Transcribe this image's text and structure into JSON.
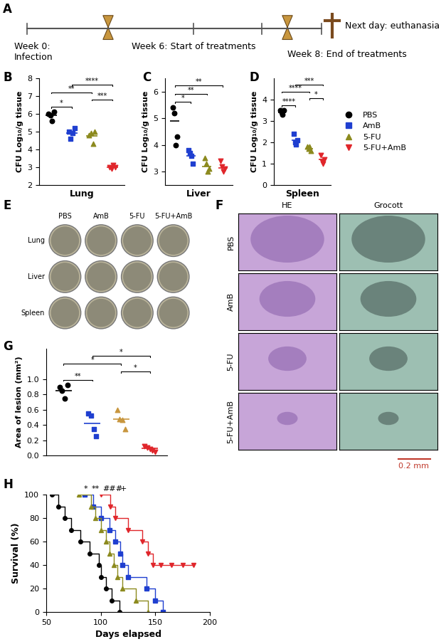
{
  "panel_labels": [
    "A",
    "B",
    "C",
    "D",
    "E",
    "F",
    "G",
    "H"
  ],
  "timeline": {
    "events": [
      "Week 0:\nInfection",
      "Week 6: Start of treatments",
      "Next day: euthanasia",
      "Week 8: End of treatments"
    ]
  },
  "chart_data": [
    {
      "type": "scatter",
      "xlabel": "Lung",
      "ylabel": "CFU Log₁₀/g tissue",
      "ylim": [
        2,
        8
      ],
      "yticks": [
        2,
        3,
        4,
        5,
        6,
        7,
        8
      ],
      "tick_labels": "y",
      "series": [
        {
          "name": "PBS",
          "color": "#000000",
          "marker": "circle",
          "values": [
            6.0,
            5.9,
            5.6,
            6.1
          ],
          "mean": 5.9
        },
        {
          "name": "AmB",
          "color": "#1f3fd0",
          "marker": "square",
          "values": [
            5.0,
            4.6,
            4.9,
            5.2
          ],
          "mean": 4.9
        },
        {
          "name": "5-FU",
          "color": "#8c8a1e",
          "marker": "triangle",
          "values": [
            4.8,
            4.9,
            4.3,
            5.0
          ],
          "mean": 4.75
        },
        {
          "name": "5-FU+AmB",
          "color": "#e0262b",
          "marker": "triangle_down",
          "values": [
            3.0,
            2.9,
            3.1,
            3.0
          ],
          "mean": 3.0
        }
      ],
      "comparisons": [
        {
          "groups": [
            "PBS",
            "AmB"
          ],
          "label": "*"
        },
        {
          "groups": [
            "5-FU",
            "5-FU+AmB"
          ],
          "label": "***"
        },
        {
          "groups": [
            "PBS",
            "5-FU"
          ],
          "label": "**"
        },
        {
          "groups": [
            "AmB",
            "5-FU+AmB"
          ],
          "label": "****"
        }
      ]
    },
    {
      "type": "scatter",
      "xlabel": "Liver",
      "ylabel": "CFU Log₁₀/g tissue",
      "ylim": [
        2.5,
        6.5
      ],
      "yticks": [
        3,
        4,
        5,
        6
      ],
      "tick_labels": "y",
      "series": [
        {
          "name": "PBS",
          "color": "#000000",
          "marker": "circle",
          "values": [
            5.4,
            5.2,
            4.0,
            4.3
          ],
          "mean": 4.9
        },
        {
          "name": "AmB",
          "color": "#1f3fd0",
          "marker": "square",
          "values": [
            3.8,
            3.7,
            3.6,
            3.3
          ],
          "mean": 3.6
        },
        {
          "name": "5-FU",
          "color": "#8c8a1e",
          "marker": "triangle",
          "values": [
            3.5,
            3.3,
            3.0,
            3.1
          ],
          "mean": 3.2
        },
        {
          "name": "5-FU+AmB",
          "color": "#e0262b",
          "marker": "triangle_down",
          "values": [
            3.4,
            3.2,
            3.0,
            3.1
          ],
          "mean": 3.15
        }
      ],
      "comparisons": [
        {
          "groups": [
            "PBS",
            "AmB"
          ],
          "label": "*"
        },
        {
          "groups": [
            "PBS",
            "5-FU"
          ],
          "label": "**"
        },
        {
          "groups": [
            "PBS",
            "5-FU+AmB"
          ],
          "label": "**"
        }
      ]
    },
    {
      "type": "scatter",
      "xlabel": "Spleen",
      "ylabel": "CFU Log₁₀/g tissue",
      "ylim": [
        0,
        5
      ],
      "yticks": [
        0,
        1,
        2,
        3,
        4
      ],
      "tick_labels": "y",
      "legend": "center left",
      "series": [
        {
          "name": "PBS",
          "color": "#000000",
          "marker": "circle",
          "values": [
            3.5,
            3.4,
            3.3,
            3.5
          ],
          "mean": 3.4
        },
        {
          "name": "AmB",
          "color": "#1f3fd0",
          "marker": "square",
          "values": [
            2.4,
            2.0,
            1.9,
            2.1
          ],
          "mean": 2.1
        },
        {
          "name": "5-FU",
          "color": "#8c8a1e",
          "marker": "triangle",
          "values": [
            1.8,
            1.7,
            1.8,
            1.6
          ],
          "mean": 1.7
        },
        {
          "name": "5-FU+AmB",
          "color": "#e0262b",
          "marker": "triangle_down",
          "values": [
            1.4,
            1.1,
            1.0,
            1.2
          ],
          "mean": 1.2
        }
      ],
      "comparisons": [
        {
          "groups": [
            "PBS",
            "AmB"
          ],
          "label": "****"
        },
        {
          "groups": [
            "5-FU",
            "5-FU+AmB"
          ],
          "label": "*"
        },
        {
          "groups": [
            "PBS",
            "5-FU"
          ],
          "label": "****"
        },
        {
          "groups": [
            "AmB",
            "5-FU+AmB"
          ],
          "label": "***"
        }
      ]
    },
    {
      "type": "scatter",
      "ylabel": "Area of lesion (mm²)",
      "ylim": [
        0,
        1.4
      ],
      "yticks": [
        {
          "value": 0,
          "label": "0.0"
        },
        {
          "value": 0.2,
          "label": "0.2"
        },
        {
          "value": 0.4,
          "label": "0.4"
        },
        {
          "value": 0.6,
          "label": "0.6"
        },
        {
          "value": 0.8,
          "label": "0.8"
        },
        {
          "value": 1,
          "label": "1.0"
        }
      ],
      "tick_labels": "y",
      "series": [
        {
          "name": "PBS",
          "color": "#000000",
          "marker": "circle",
          "values": [
            0.9,
            0.85,
            0.75,
            0.92
          ],
          "mean": 0.85
        },
        {
          "name": "AmB",
          "color": "#1f3fd0",
          "marker": "square",
          "values": [
            0.55,
            0.52,
            0.35,
            0.25
          ],
          "mean": 0.42
        },
        {
          "name": "5-FU",
          "color": "#c8963e",
          "marker": "triangle",
          "values": [
            0.6,
            0.48,
            0.47,
            0.35
          ],
          "mean": 0.48
        },
        {
          "name": "5-FU+AmB",
          "color": "#e0262b",
          "marker": "triangle_down",
          "values": [
            0.12,
            0.1,
            0.08,
            0.07,
            0.05
          ],
          "mean": 0.09
        }
      ],
      "comparisons": [
        {
          "groups": [
            "PBS",
            "AmB"
          ],
          "label": "**"
        },
        {
          "groups": [
            "5-FU",
            "5-FU+AmB"
          ],
          "label": "*"
        },
        {
          "groups": [
            "PBS",
            "5-FU"
          ],
          "label": "*"
        },
        {
          "groups": [
            "AmB",
            "5-FU+AmB"
          ],
          "label": "*"
        }
      ]
    },
    {
      "type": "line",
      "line_style": "steps",
      "xlabel": "Days elapsed",
      "ylabel": "Survival (%)",
      "xlim": [
        50,
        200
      ],
      "xticks": [
        50,
        100,
        150,
        200
      ],
      "ylim": [
        0,
        100
      ],
      "yticks": [
        0,
        20,
        40,
        60,
        80,
        100
      ],
      "series": [
        {
          "name": "PBS",
          "color": "#000000",
          "marker": "circle",
          "x": [
            55,
            61,
            67,
            73,
            81,
            90,
            98,
            100,
            105,
            110,
            117
          ],
          "values": [
            100,
            90,
            80,
            70,
            60,
            50,
            40,
            30,
            20,
            10,
            0
          ]
        },
        {
          "name": "AmB",
          "color": "#1f3fd0",
          "marker": "square",
          "x": [
            85,
            93,
            100,
            108,
            113,
            118,
            120,
            125,
            142,
            150,
            157
          ],
          "values": [
            100,
            90,
            80,
            70,
            60,
            50,
            40,
            30,
            20,
            10,
            0
          ]
        },
        {
          "name": "5-FU",
          "color": "#8c8a1e",
          "marker": "triangle",
          "x": [
            80,
            91,
            95,
            100,
            105,
            108,
            112,
            115,
            120,
            132,
            143
          ],
          "values": [
            100,
            90,
            80,
            70,
            60,
            50,
            40,
            30,
            20,
            10,
            0
          ]
        },
        {
          "name": "5-FU+AmB",
          "color": "#e0262b",
          "marker": "triangle_down",
          "x": [
            100,
            109,
            113,
            125,
            138,
            143,
            148,
            155,
            165,
            175,
            185
          ],
          "values": [
            100,
            90,
            80,
            70,
            60,
            50,
            40,
            40,
            40,
            40,
            40
          ]
        }
      ],
      "annotations": [
        {
          "x": 86,
          "label": "*"
        },
        {
          "x": 95,
          "label": "**"
        },
        {
          "x": 111,
          "label": "###"
        },
        {
          "x": 121,
          "label": "+"
        }
      ]
    }
  ],
  "plates": {
    "columns": [
      "PBS",
      "AmB",
      "5-FU",
      "5-FU+AmB"
    ],
    "rows": [
      "Lung",
      "Liver",
      "Spleen"
    ]
  },
  "histology": {
    "columns": [
      "HE",
      "Grocott"
    ],
    "rows": [
      "PBS",
      "AmB",
      "5-FU",
      "5-FU+AmB"
    ],
    "scale_bar": "0.2 mm"
  }
}
